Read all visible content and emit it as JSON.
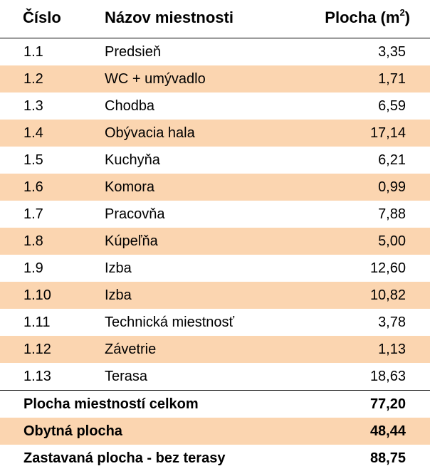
{
  "header": {
    "number": "Číslo",
    "room_name": "Názov miestnosti",
    "area": "Plocha (m",
    "area_sup": "2",
    "area_close": ")"
  },
  "rooms": [
    {
      "number": "1.1",
      "name": "Predsieň",
      "area": "3,35"
    },
    {
      "number": "1.2",
      "name": "WC + umývadlo",
      "area": "1,71"
    },
    {
      "number": "1.3",
      "name": "Chodba",
      "area": "6,59"
    },
    {
      "number": "1.4",
      "name": "Obývacia hala",
      "area": "17,14"
    },
    {
      "number": "1.5",
      "name": "Kuchyňa",
      "area": "6,21"
    },
    {
      "number": "1.6",
      "name": "Komora",
      "area": "0,99"
    },
    {
      "number": "1.7",
      "name": "Pracovňa",
      "area": "7,88"
    },
    {
      "number": "1.8",
      "name": "Kúpeľňa",
      "area": "5,00"
    },
    {
      "number": "1.9",
      "name": "Izba",
      "area": "12,60"
    },
    {
      "number": "1.10",
      "name": "Izba",
      "area": "10,82"
    },
    {
      "number": "1.11",
      "name": "Technická miestnosť",
      "area": "3,78"
    },
    {
      "number": "1.12",
      "name": "Závetrie",
      "area": "1,13"
    },
    {
      "number": "1.13",
      "name": "Terasa",
      "area": "18,63"
    }
  ],
  "summary": [
    {
      "label": "Plocha miestností celkom",
      "value": "77,20"
    },
    {
      "label": "Obytná plocha",
      "value": "48,44"
    },
    {
      "label": "Zastavaná plocha - bez terasy",
      "value": "88,75"
    }
  ],
  "colors": {
    "row_shade": "#fbd5b0",
    "rule": "#000000"
  }
}
